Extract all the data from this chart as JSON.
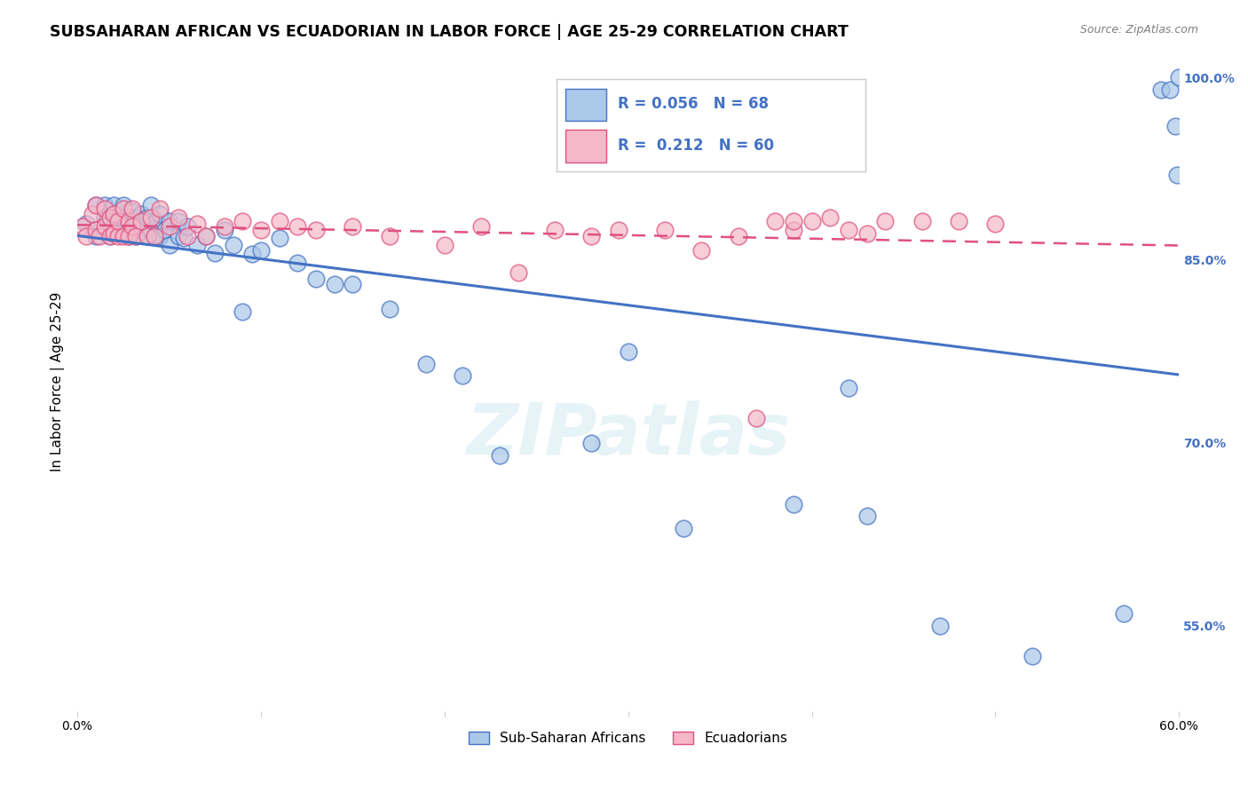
{
  "title": "SUBSAHARAN AFRICAN VS ECUADORIAN IN LABOR FORCE | AGE 25-29 CORRELATION CHART",
  "source": "Source: ZipAtlas.com",
  "ylabel": "In Labor Force | Age 25-29",
  "xlim": [
    0.0,
    0.6
  ],
  "ylim": [
    0.48,
    1.02
  ],
  "xticks": [
    0.0,
    0.1,
    0.2,
    0.3,
    0.4,
    0.5,
    0.6
  ],
  "xticklabels": [
    "0.0%",
    "",
    "",
    "",
    "",
    "",
    "60.0%"
  ],
  "yticks_right": [
    0.55,
    0.7,
    0.85,
    1.0
  ],
  "ytick_right_labels": [
    "55.0%",
    "70.0%",
    "85.0%",
    "100.0%"
  ],
  "blue_color": "#aac8e8",
  "blue_edge_color": "#4472c4",
  "pink_color": "#f4b8c8",
  "pink_edge_color": "#e05080",
  "legend_R_blue": "0.056",
  "legend_N_blue": "68",
  "legend_R_pink": "0.212",
  "legend_N_pink": "60",
  "watermark": "ZIPatlas",
  "blue_x": [
    0.005,
    0.01,
    0.01,
    0.015,
    0.015,
    0.015,
    0.018,
    0.02,
    0.02,
    0.022,
    0.022,
    0.025,
    0.025,
    0.025,
    0.028,
    0.028,
    0.03,
    0.03,
    0.032,
    0.032,
    0.035,
    0.035,
    0.038,
    0.038,
    0.04,
    0.04,
    0.042,
    0.043,
    0.045,
    0.045,
    0.048,
    0.05,
    0.05,
    0.055,
    0.055,
    0.058,
    0.06,
    0.065,
    0.07,
    0.075,
    0.08,
    0.085,
    0.09,
    0.095,
    0.1,
    0.11,
    0.12,
    0.13,
    0.14,
    0.15,
    0.17,
    0.19,
    0.21,
    0.23,
    0.28,
    0.3,
    0.33,
    0.39,
    0.42,
    0.43,
    0.47,
    0.52,
    0.57,
    0.59,
    0.595,
    0.598,
    0.599,
    0.6
  ],
  "blue_y": [
    0.88,
    0.87,
    0.895,
    0.875,
    0.885,
    0.895,
    0.87,
    0.885,
    0.895,
    0.875,
    0.885,
    0.875,
    0.885,
    0.895,
    0.87,
    0.88,
    0.875,
    0.89,
    0.87,
    0.885,
    0.875,
    0.888,
    0.87,
    0.885,
    0.875,
    0.895,
    0.87,
    0.882,
    0.87,
    0.888,
    0.875,
    0.862,
    0.882,
    0.87,
    0.882,
    0.868,
    0.878,
    0.862,
    0.87,
    0.856,
    0.875,
    0.862,
    0.808,
    0.855,
    0.858,
    0.868,
    0.848,
    0.835,
    0.83,
    0.83,
    0.81,
    0.765,
    0.755,
    0.69,
    0.7,
    0.775,
    0.63,
    0.65,
    0.745,
    0.64,
    0.55,
    0.525,
    0.56,
    0.99,
    0.99,
    0.96,
    0.92,
    1.0
  ],
  "pink_x": [
    0.003,
    0.005,
    0.008,
    0.01,
    0.01,
    0.012,
    0.015,
    0.015,
    0.018,
    0.018,
    0.02,
    0.02,
    0.022,
    0.022,
    0.025,
    0.025,
    0.028,
    0.028,
    0.03,
    0.03,
    0.032,
    0.035,
    0.038,
    0.04,
    0.042,
    0.045,
    0.05,
    0.055,
    0.06,
    0.065,
    0.07,
    0.08,
    0.09,
    0.1,
    0.11,
    0.12,
    0.13,
    0.15,
    0.17,
    0.2,
    0.22,
    0.24,
    0.26,
    0.28,
    0.295,
    0.32,
    0.34,
    0.36,
    0.37,
    0.38,
    0.39,
    0.39,
    0.4,
    0.41,
    0.42,
    0.43,
    0.44,
    0.46,
    0.48,
    0.5
  ],
  "pink_y": [
    0.878,
    0.87,
    0.888,
    0.875,
    0.895,
    0.87,
    0.878,
    0.892,
    0.87,
    0.885,
    0.872,
    0.888,
    0.87,
    0.882,
    0.87,
    0.892,
    0.87,
    0.882,
    0.878,
    0.892,
    0.87,
    0.882,
    0.87,
    0.885,
    0.87,
    0.892,
    0.878,
    0.885,
    0.87,
    0.88,
    0.87,
    0.878,
    0.882,
    0.875,
    0.882,
    0.878,
    0.875,
    0.878,
    0.87,
    0.862,
    0.878,
    0.84,
    0.875,
    0.87,
    0.875,
    0.875,
    0.858,
    0.87,
    0.72,
    0.882,
    0.875,
    0.882,
    0.882,
    0.885,
    0.875,
    0.872,
    0.882,
    0.882,
    0.882,
    0.88
  ],
  "grid_color": "#e0e0e0",
  "title_fontsize": 12.5,
  "axis_label_fontsize": 11,
  "tick_fontsize": 10,
  "legend_fontsize": 13
}
